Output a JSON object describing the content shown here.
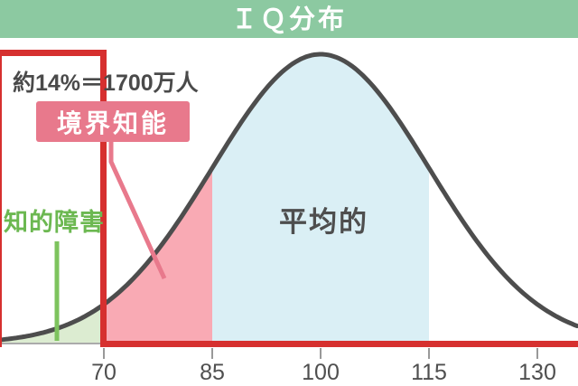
{
  "header": {
    "title": "ＩＱ分布"
  },
  "annotations": {
    "stat_label": "約14%＝1700万人",
    "borderline_label": "境界知能",
    "intellectual_disability_label": "知的障害",
    "average_label": "平均的"
  },
  "colors": {
    "header_green": "#8cc9a1",
    "accent_red": "#d6302f",
    "label_pink": "#e8798c",
    "pointer_pink": "#e8798c",
    "pointer_green": "#7dc35e",
    "green_text": "#6cb851",
    "curve_stroke": "#4d4d4d",
    "fill_green": "#dcecd1",
    "fill_pink": "#f9aab4",
    "fill_blue": "#daeff5",
    "axis_gray": "#ababab",
    "tick_gray": "#999999",
    "tick_label": "#4f4f4f",
    "text_dark": "#4a4a4a"
  },
  "chart_data": {
    "type": "area",
    "title": "ＩＱ分布",
    "xlabel": "",
    "ylabel": "",
    "distribution": {
      "kind": "normal",
      "mean": 100,
      "sd": 15
    },
    "x_ticks": [
      70,
      85,
      100,
      115,
      130
    ],
    "grid": false,
    "legend": false,
    "regions": [
      {
        "label": "知的障害",
        "iq_min": null,
        "iq_max": 70,
        "fill": "#dcecd1",
        "annotation": ""
      },
      {
        "label": "境界知能",
        "iq_min": 70,
        "iq_max": 85,
        "fill": "#f9aab4",
        "annotation": "約14%＝1700万人"
      },
      {
        "label": "平均的",
        "iq_min": 85,
        "iq_max": 115,
        "fill": "#daeff5",
        "annotation": ""
      },
      {
        "label": "",
        "iq_min": 115,
        "iq_max": null,
        "fill": "none",
        "annotation": ""
      }
    ],
    "highlight": {
      "box_iq_max": 70,
      "underline_from_iq": 70
    }
  }
}
